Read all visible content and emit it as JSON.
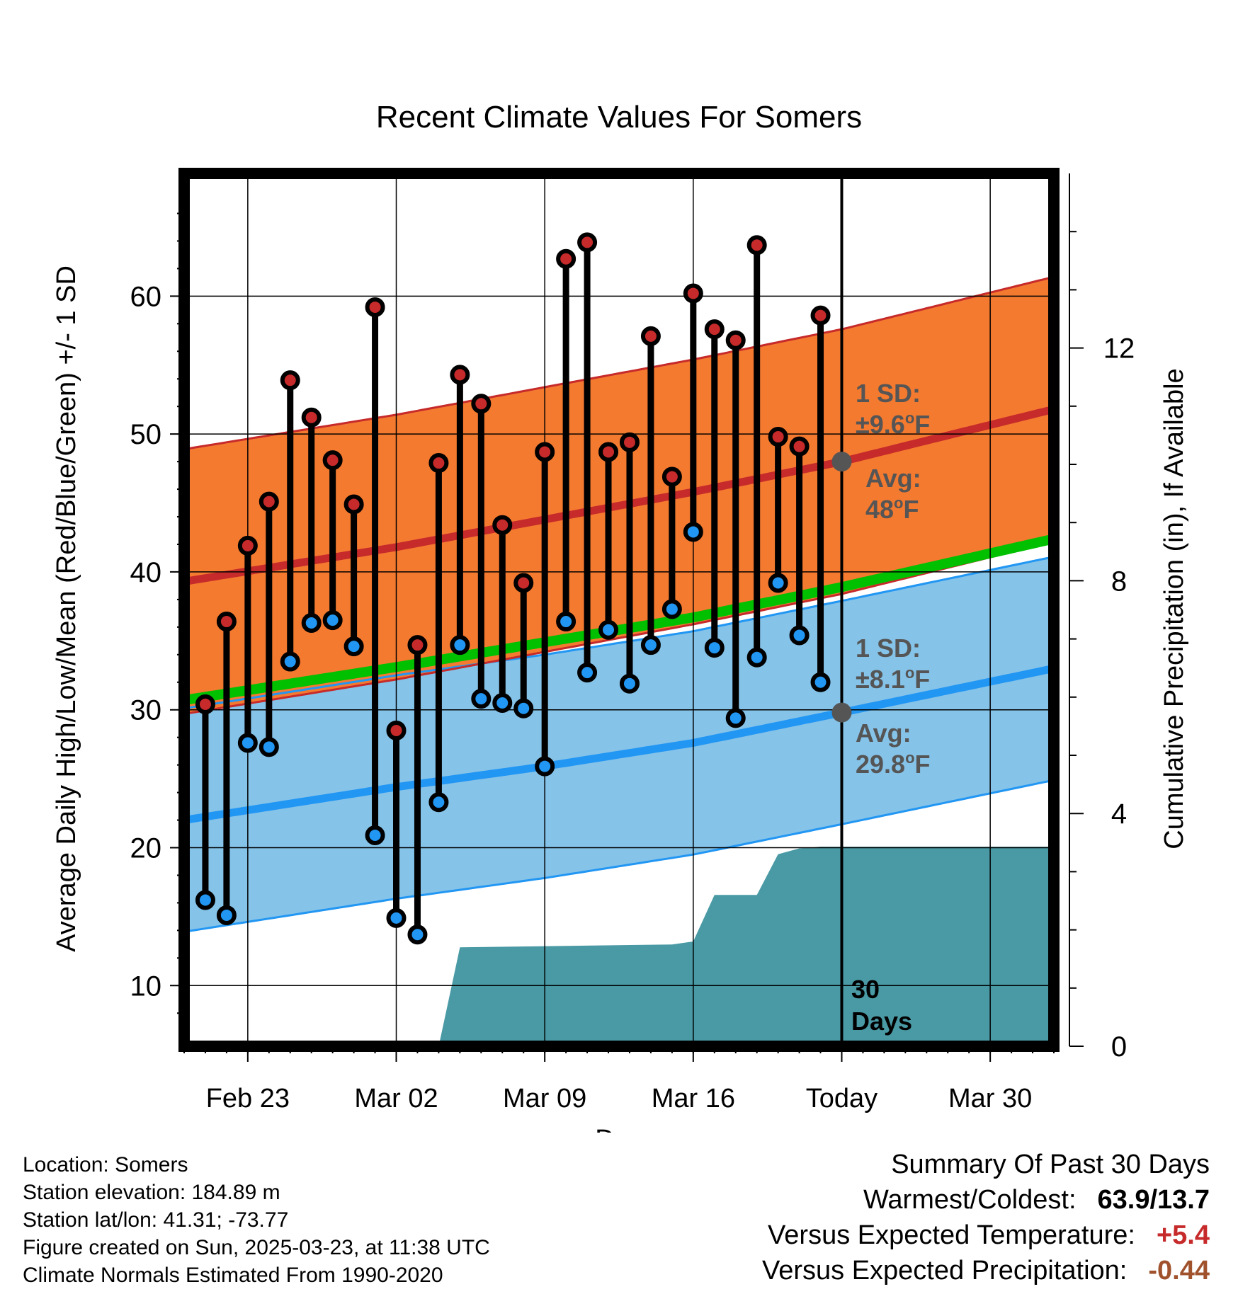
{
  "chart_data": {
    "type": "line",
    "title": "Recent Climate Values For Somers",
    "xlabel": "Day",
    "ylabel": "Average Daily High/Low/Mean (Red/Blue/Green) +/- 1 SD",
    "y2label": "Cumulative Precipitation (in), If Available",
    "x_tick_labels": [
      "Feb 23",
      "Mar 02",
      "Mar 09",
      "Mar 16",
      "Today",
      "Mar 30"
    ],
    "x_tick_dates": [
      "2025-02-23",
      "2025-03-02",
      "2025-03-09",
      "2025-03-16",
      "2025-03-23",
      "2025-03-30"
    ],
    "x_range": [
      "2025-02-20",
      "2025-04-02"
    ],
    "today": "2025-03-23",
    "ylim": [
      5.6,
      68.9
    ],
    "y_ticks": [
      10,
      20,
      30,
      40,
      50,
      60
    ],
    "y2lim": [
      0,
      15.0
    ],
    "y2_ticks": [
      0,
      4,
      8,
      12
    ],
    "grid": true,
    "colors": {
      "high": "#c62a2a",
      "low": "#2196f3",
      "mean": "#00c000",
      "high_band": "#f47a30",
      "low_band": "#85c3e9",
      "precip": "#4a9aa5",
      "marker": "#555555"
    },
    "daily_observations": {
      "dates": [
        "2025-02-21",
        "2025-02-22",
        "2025-02-23",
        "2025-02-24",
        "2025-02-25",
        "2025-02-26",
        "2025-02-27",
        "2025-02-28",
        "2025-03-01",
        "2025-03-02",
        "2025-03-03",
        "2025-03-04",
        "2025-03-05",
        "2025-03-06",
        "2025-03-07",
        "2025-03-08",
        "2025-03-09",
        "2025-03-10",
        "2025-03-11",
        "2025-03-12",
        "2025-03-13",
        "2025-03-14",
        "2025-03-15",
        "2025-03-16",
        "2025-03-17",
        "2025-03-18",
        "2025-03-19",
        "2025-03-20",
        "2025-03-21",
        "2025-03-22"
      ],
      "high": [
        30.4,
        36.4,
        41.9,
        45.1,
        53.9,
        51.2,
        48.1,
        44.9,
        59.2,
        28.5,
        34.7,
        47.9,
        54.3,
        52.2,
        43.4,
        39.2,
        48.7,
        62.7,
        63.9,
        48.7,
        49.4,
        57.1,
        46.9,
        60.2,
        57.6,
        56.8,
        63.7,
        49.8,
        49.1,
        58.6
      ],
      "low": [
        16.2,
        15.1,
        27.6,
        27.3,
        33.5,
        36.3,
        36.5,
        34.6,
        20.9,
        14.9,
        13.7,
        23.3,
        34.7,
        30.8,
        30.5,
        30.1,
        25.9,
        36.4,
        32.7,
        35.8,
        31.9,
        34.7,
        37.3,
        42.9,
        34.5,
        29.4,
        33.8,
        39.2,
        35.4,
        32.0
      ]
    },
    "normals": {
      "dates": [
        "2025-02-20",
        "2025-03-02",
        "2025-03-09",
        "2025-03-16",
        "2025-03-23",
        "2025-04-02"
      ],
      "high_mean": [
        39.3,
        41.8,
        43.8,
        45.8,
        48.0,
        51.8
      ],
      "high_sd": 9.6,
      "low_mean": [
        22.0,
        24.4,
        25.9,
        27.6,
        29.8,
        33.0
      ],
      "low_sd": 8.1,
      "mean": [
        30.7,
        33.1,
        34.9,
        36.7,
        38.9,
        42.4
      ]
    },
    "precip_cumulative": {
      "dates": [
        "2025-02-20",
        "2025-03-03",
        "2025-03-04",
        "2025-03-05",
        "2025-03-15",
        "2025-03-16",
        "2025-03-17",
        "2025-03-18",
        "2025-03-19",
        "2025-03-20",
        "2025-03-21",
        "2025-03-22",
        "2025-04-02"
      ],
      "values": [
        0,
        0,
        0.0,
        1.7,
        1.75,
        1.8,
        2.6,
        2.6,
        2.6,
        3.3,
        3.4,
        3.43,
        3.43
      ]
    },
    "annotations": {
      "high_sd_label": "1 SD:",
      "high_sd_value": "±9.6",
      "high_avg_label": "Avg:",
      "high_avg_value": "48",
      "low_sd_label": "1 SD:",
      "low_sd_value": "±8.1",
      "low_avg_label": "Avg:",
      "low_avg_value": "29.8",
      "deg_symbol": "o",
      "unit_f": "F",
      "window_label_1": "30",
      "window_label_2": "Days"
    }
  },
  "metadata": {
    "location": "Location: Somers",
    "elevation": "Station elevation: 184.89 m",
    "latlon": "Station lat/lon: 41.31; -73.77",
    "created": "Figure created on Sun, 2025-03-23, at 11:38 UTC",
    "normals": "Climate Normals Estimated From 1990-2020"
  },
  "summary": {
    "heading": "Summary Of Past 30 Days",
    "warmest_label": "Warmest/Coldest:",
    "warmest_value": "63.9/13.7",
    "temp_label": "Versus Expected Temperature:",
    "temp_value": "+5.4",
    "temp_color": "#c62a2a",
    "precip_label": "Versus Expected Precipitation:",
    "precip_value": "-0.44",
    "precip_color": "#a0522d"
  }
}
